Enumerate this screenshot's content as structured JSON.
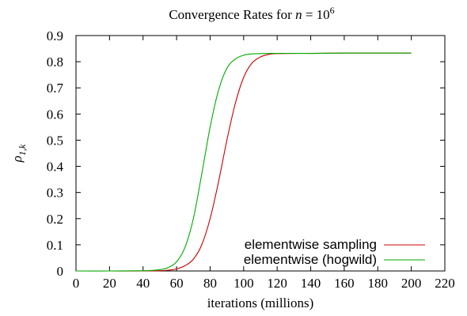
{
  "chart_data": {
    "type": "line",
    "title": "Convergence Rates for n = 10^6",
    "title_parts": {
      "prefix": "Convergence Rates for ",
      "n": "n",
      "eq": " = 10",
      "exp": "6"
    },
    "xlabel": "iterations (millions)",
    "ylabel": "ρ",
    "ylabel_sub": "1,k",
    "xlim": [
      0,
      220
    ],
    "ylim": [
      0,
      0.9
    ],
    "x_ticks": [
      0,
      20,
      40,
      60,
      80,
      100,
      120,
      140,
      160,
      180,
      200,
      220
    ],
    "y_ticks": [
      0,
      0.1,
      0.2,
      0.3,
      0.4,
      0.5,
      0.6,
      0.7,
      0.8,
      0.9
    ],
    "x_tick_labels": [
      "0",
      "20",
      "40",
      "60",
      "80",
      "100",
      "120",
      "140",
      "160",
      "180",
      "200",
      "220"
    ],
    "y_tick_labels": [
      "0",
      "0.1",
      "0.2",
      "0.3",
      "0.4",
      "0.5",
      "0.6",
      "0.7",
      "0.8",
      "0.9"
    ],
    "grid": false,
    "legend_position": "bottom-right",
    "series": [
      {
        "name": "elementwise sampling",
        "color": "#cc0000",
        "x": [
          0,
          20,
          40,
          50,
          55,
          60,
          65,
          70,
          75,
          80,
          85,
          90,
          95,
          100,
          105,
          110,
          115,
          120,
          130,
          140,
          160,
          180,
          200
        ],
        "y": [
          0,
          0,
          0,
          0.001,
          0.003,
          0.008,
          0.02,
          0.045,
          0.1,
          0.2,
          0.34,
          0.5,
          0.64,
          0.74,
          0.795,
          0.818,
          0.828,
          0.831,
          0.832,
          0.832,
          0.833,
          0.833,
          0.833
        ]
      },
      {
        "name": "elementwise (hogwild)",
        "color": "#00aa00",
        "x": [
          0,
          20,
          40,
          45,
          50,
          55,
          60,
          65,
          70,
          75,
          80,
          85,
          90,
          95,
          100,
          105,
          110,
          120,
          130,
          140,
          160,
          180,
          200
        ],
        "y": [
          0,
          0,
          0.001,
          0.002,
          0.005,
          0.013,
          0.035,
          0.09,
          0.2,
          0.37,
          0.55,
          0.69,
          0.775,
          0.81,
          0.825,
          0.83,
          0.831,
          0.832,
          0.832,
          0.832,
          0.833,
          0.833,
          0.833
        ]
      }
    ]
  }
}
